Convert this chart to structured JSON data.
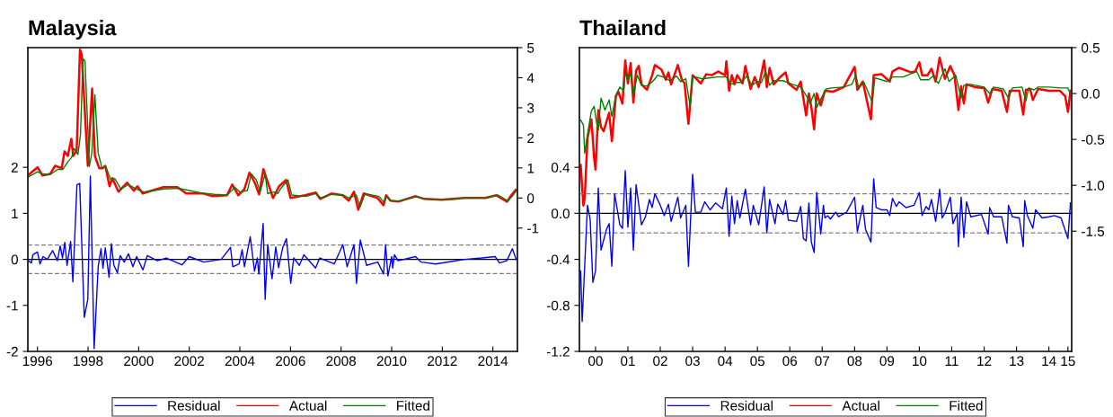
{
  "chart_data": [
    {
      "type": "line",
      "title": "Malaysia",
      "legend": "bottom",
      "grid": false,
      "marker": "none",
      "line_style": "solid",
      "xlim": [
        1995.62,
        2014.97
      ],
      "xticks": [
        1996,
        1998,
        2000,
        2002,
        2004,
        2006,
        2008,
        2010,
        2012,
        2014
      ],
      "ylim": [
        -2,
        4.6
      ],
      "yticks": [
        -2,
        -1,
        0,
        1,
        2
      ],
      "y2lim": [
        -5.1,
        5
      ],
      "y2ticks": [
        -1,
        0,
        1,
        2,
        3,
        4,
        5
      ],
      "ref_lines": [
        {
          "axis": "y",
          "value": 0,
          "color": "#000000",
          "line_style": "solid"
        },
        {
          "axis": "y",
          "value": 0.31,
          "color": "#808080",
          "line_style": "dashed"
        },
        {
          "axis": "y",
          "value": -0.31,
          "color": "#808080",
          "line_style": "dashed"
        }
      ],
      "series": [
        {
          "name": "Residual",
          "color": "#0000ff",
          "x": [
            1995.65,
            1995.76,
            1995.82,
            1996.0,
            1996.1,
            1996.22,
            1996.39,
            1996.6,
            1996.79,
            1996.9,
            1996.99,
            1997.08,
            1997.17,
            1997.31,
            1997.4,
            1997.56,
            1997.67,
            1997.85,
            1997.99,
            1998.09,
            1998.24,
            1998.4,
            1998.51,
            1998.59,
            1998.68,
            1998.83,
            1998.92,
            1999.02,
            1999.16,
            1999.27,
            1999.43,
            1999.6,
            1999.77,
            1999.92,
            2000.17,
            2000.34,
            2000.74,
            2001.09,
            2001.71,
            2002.0,
            2002.57,
            2003.26,
            2003.63,
            2003.72,
            2003.97,
            2004.09,
            2004.18,
            2004.41,
            2004.58,
            2004.69,
            2004.75,
            2004.92,
            2005.0,
            2005.1,
            2005.27,
            2005.42,
            2005.53,
            2005.69,
            2005.84,
            2006.01,
            2006.13,
            2006.35,
            2006.53,
            2006.99,
            2007.16,
            2007.73,
            2008.07,
            2008.24,
            2008.51,
            2008.61,
            2008.76,
            2009.01,
            2009.45,
            2009.68,
            2009.76,
            2009.85,
            2010.0,
            2010.04,
            2010.11,
            2010.25,
            2010.94,
            2011.17,
            2011.74,
            2012.88,
            2013.57,
            2014.09,
            2014.26,
            2014.55,
            2014.77,
            2014.92
          ],
          "values": [
            -0.03,
            -0.08,
            0.1,
            0.16,
            -0.1,
            0.06,
            0,
            0.19,
            -0.03,
            0.29,
            0.03,
            0.37,
            -0.13,
            0.39,
            -0.49,
            1.62,
            1.65,
            -1.26,
            -0.87,
            1.81,
            -1.94,
            -0.16,
            0.23,
            -0.19,
            0.25,
            -0.39,
            0.34,
            -0.13,
            -0.29,
            0.08,
            -0.06,
            0.12,
            -0.16,
            0.06,
            -0.23,
            0.08,
            -0.03,
            0.03,
            -0.12,
            0.06,
            -0.06,
            0,
            0.26,
            -0.16,
            -0.1,
            0.21,
            -0.16,
            0.49,
            -0.26,
            0.03,
            -0.32,
            0.78,
            -0.87,
            0.32,
            -0.42,
            0.27,
            -0.18,
            0.25,
            0.45,
            -0.52,
            0.03,
            -0.13,
            0.1,
            -0.19,
            0.03,
            -0.1,
            0.32,
            -0.16,
            0.32,
            -0.52,
            0.42,
            -0.13,
            -0.06,
            -0.32,
            0.32,
            -0.36,
            0.06,
            -0.19,
            0.1,
            -0.03,
            0.06,
            -0.06,
            -0.1,
            0,
            0.03,
            0.06,
            -0.08,
            -0.03,
            0.23,
            0
          ]
        },
        {
          "name": "Actual",
          "color": "#ff0000",
          "axis": "y2",
          "x": [
            1995.65,
            1996.0,
            1996.2,
            1996.5,
            1996.7,
            1996.96,
            1997.07,
            1997.2,
            1997.34,
            1997.41,
            1997.55,
            1997.68,
            1997.75,
            1997.99,
            1998.16,
            1998.27,
            1998.44,
            1998.58,
            1998.68,
            1998.85,
            1998.96,
            1999.2,
            1999.54,
            1999.81,
            1999.95,
            2000.16,
            2000.5,
            2000.98,
            2001.53,
            2001.88,
            2002.56,
            2002.91,
            2003.49,
            2003.7,
            2003.94,
            2004.18,
            2004.38,
            2004.59,
            2004.76,
            2004.93,
            2005.31,
            2005.55,
            2005.83,
            2006.0,
            2006.58,
            2007.0,
            2007.17,
            2007.62,
            2008.06,
            2008.3,
            2008.51,
            2008.68,
            2008.89,
            2009.44,
            2009.68,
            2009.78,
            2009.95,
            2010.26,
            2010.95,
            2011.29,
            2011.98,
            2012.87,
            2013.7,
            2014.14,
            2014.56,
            2014.73,
            2014.9
          ],
          "values": [
            0.77,
            1.02,
            0.75,
            0.8,
            1.07,
            0.99,
            1.55,
            1.4,
            1.97,
            1.4,
            1.58,
            4.93,
            4.78,
            1.07,
            3.64,
            1.4,
            0.99,
            0.99,
            1.07,
            0.39,
            0.66,
            0.21,
            0.51,
            0.24,
            0.39,
            0.15,
            0.24,
            0.36,
            0.36,
            0.15,
            0.15,
            0.06,
            0.09,
            0.45,
            0.09,
            0.3,
            0.84,
            0.51,
            0.12,
            0.96,
            0,
            0.39,
            0.6,
            0,
            0.09,
            0.18,
            -0.03,
            0.15,
            0.09,
            -0.09,
            0.21,
            -0.39,
            0.15,
            0,
            -0.24,
            0.09,
            -0.09,
            -0.12,
            0.06,
            -0.03,
            -0.06,
            0,
            0,
            0.09,
            -0.12,
            0.09,
            0.27
          ]
        },
        {
          "name": "Fitted",
          "color": "#008000",
          "axis": "y2",
          "x": [
            1995.65,
            1996.0,
            1996.2,
            1996.5,
            1996.8,
            1997.0,
            1997.2,
            1997.35,
            1997.45,
            1997.6,
            1997.7,
            1997.8,
            1997.88,
            1998.05,
            1998.15,
            1998.27,
            1998.4,
            1998.55,
            1998.7,
            1998.9,
            1999.05,
            1999.3,
            1999.6,
            1999.9,
            2000.2,
            2000.6,
            2001.0,
            2001.6,
            2002.0,
            2002.6,
            2003.0,
            2003.5,
            2003.8,
            2004.0,
            2004.3,
            2004.45,
            2004.65,
            2004.8,
            2005.0,
            2005.1,
            2005.35,
            2005.5,
            2005.6,
            2005.9,
            2006.05,
            2006.6,
            2007.0,
            2007.2,
            2007.6,
            2008.1,
            2008.3,
            2008.6,
            2008.75,
            2008.95,
            2009.5,
            2009.7,
            2009.8,
            2010.0,
            2010.3,
            2011.0,
            2011.3,
            2012.0,
            2012.9,
            2013.7,
            2014.2,
            2014.6,
            2014.8,
            2014.95
          ],
          "values": [
            0.7,
            0.87,
            0.8,
            0.78,
            0.95,
            0.95,
            1.2,
            1.35,
            1.65,
            1.45,
            2.1,
            4.63,
            4.55,
            1.05,
            1.5,
            3.43,
            1.5,
            1.0,
            1.05,
            0.6,
            0.65,
            0.3,
            0.45,
            0.3,
            0.2,
            0.25,
            0.3,
            0.32,
            0.25,
            0.15,
            0.12,
            0.1,
            0.35,
            0.2,
            0.25,
            0.8,
            0.6,
            0.2,
            0.8,
            0.15,
            0.2,
            0.15,
            0.3,
            0.6,
            0.1,
            0.05,
            0.15,
            0,
            0.12,
            0.1,
            0,
            0.1,
            -0.3,
            0.15,
            0.05,
            -0.15,
            0.05,
            -0.1,
            -0.1,
            0.05,
            -0.03,
            -0.06,
            0,
            0,
            0.1,
            -0.1,
            0.1,
            0.27
          ]
        }
      ]
    },
    {
      "type": "line",
      "title": "Thailand",
      "legend": "bottom",
      "grid": false,
      "marker": "none",
      "line_style": "solid",
      "xlim": [
        "2000-01-01",
        "2015-03-15"
      ],
      "xticks": [
        {
          "value": "2000-07-01",
          "label": "00"
        },
        {
          "value": "2001-07-01",
          "label": "01"
        },
        {
          "value": "2002-07-01",
          "label": "02"
        },
        {
          "value": "2003-07-01",
          "label": "03"
        },
        {
          "value": "2004-07-01",
          "label": "04"
        },
        {
          "value": "2005-07-01",
          "label": "05"
        },
        {
          "value": "2006-07-01",
          "label": "06"
        },
        {
          "value": "2007-07-01",
          "label": "07"
        },
        {
          "value": "2008-07-01",
          "label": "08"
        },
        {
          "value": "2009-07-01",
          "label": "09"
        },
        {
          "value": "2010-07-01",
          "label": "10"
        },
        {
          "value": "2011-07-01",
          "label": "11"
        },
        {
          "value": "2012-07-01",
          "label": "12"
        },
        {
          "value": "2013-07-01",
          "label": "13"
        },
        {
          "value": "2014-07-01",
          "label": "14"
        },
        {
          "value": "2015-02-01",
          "label": "15"
        }
      ],
      "ylim": [
        -1.2,
        1.44
      ],
      "yticks": [
        -1.2,
        -0.8,
        -0.4,
        {
          "value": 0,
          "label": "0.0"
        },
        0.4
      ],
      "y2lim": [
        -2.81,
        0.5
      ],
      "y2ticks": [
        {
          "value": -1.5,
          "label": "-1.5"
        },
        {
          "value": -1,
          "label": "-1.0"
        },
        {
          "value": -0.5,
          "label": "-0.5"
        },
        {
          "value": 0,
          "label": "0.0"
        },
        {
          "value": 0.5,
          "label": "0.5"
        }
      ],
      "ref_lines": [
        {
          "axis": "y",
          "value": 0,
          "color": "#000000",
          "line_style": "solid"
        },
        {
          "axis": "y",
          "value": 0.17,
          "color": "#808080",
          "line_style": "dashed"
        },
        {
          "axis": "y",
          "value": -0.17,
          "color": "#808080",
          "line_style": "dashed"
        }
      ],
      "series": [
        {
          "name": "Residual",
          "color": "#0000ff",
          "x": [
            "2000-01-15",
            "2000-02-01",
            "2000-04-01",
            "2000-05-01",
            "2000-06-01",
            "2000-07-01",
            "2000-08-01",
            "2000-09-01",
            "2000-11-01",
            "2000-12-01",
            "2001-01-01",
            "2001-02-01",
            "2001-04-01",
            "2001-05-01",
            "2001-06-01",
            "2001-07-01",
            "2001-08-01",
            "2001-09-01",
            "2001-10-01",
            "2001-12-01",
            "2002-01-15",
            "2002-03-01",
            "2002-04-01",
            "2002-05-01",
            "2002-07-01",
            "2002-08-15",
            "2002-10-01",
            "2002-11-01",
            "2003-01-15",
            "2003-02-15",
            "2003-04-15",
            "2003-05-15",
            "2003-07-01",
            "2003-08-01",
            "2003-10-01",
            "2003-11-15",
            "2004-01-15",
            "2004-03-15",
            "2004-06-01",
            "2004-07-15",
            "2004-08-15",
            "2004-09-15",
            "2004-10-15",
            "2004-11-15",
            "2004-12-15",
            "2005-02-15",
            "2005-04-15",
            "2005-05-15",
            "2005-07-15",
            "2005-09-15",
            "2005-10-15",
            "2005-11-15",
            "2006-01-15",
            "2006-02-15",
            "2006-04-15",
            "2006-05-15",
            "2006-06-15",
            "2006-09-15",
            "2006-11-01",
            "2006-12-01",
            "2007-01-01",
            "2007-02-01",
            "2007-03-01",
            "2007-04-01",
            "2007-05-01",
            "2007-06-15",
            "2007-07-15",
            "2007-08-01",
            "2007-09-01",
            "2007-10-01",
            "2007-12-01",
            "2008-01-01",
            "2008-04-01",
            "2008-07-01",
            "2008-08-01",
            "2008-10-01",
            "2008-11-01",
            "2009-01-01",
            "2009-02-01",
            "2009-03-01",
            "2009-05-01",
            "2009-07-01",
            "2009-08-01",
            "2009-09-01",
            "2009-10-15",
            "2009-11-15",
            "2010-02-01",
            "2010-05-01",
            "2010-07-01",
            "2010-08-01",
            "2010-09-15",
            "2010-10-15",
            "2010-11-15",
            "2011-01-01",
            "2011-02-15",
            "2011-03-15",
            "2011-04-15",
            "2011-06-15",
            "2011-07-15",
            "2011-09-01",
            "2011-09-15",
            "2011-10-15",
            "2011-11-15",
            "2011-12-15",
            "2012-02-01",
            "2012-06-01",
            "2012-08-15",
            "2012-09-01",
            "2012-10-15",
            "2013-01-15",
            "2013-03-15",
            "2013-04-01",
            "2013-05-15",
            "2013-08-01",
            "2013-09-15",
            "2013-10-01",
            "2013-11-01",
            "2014-01-01",
            "2014-02-01",
            "2014-04-15",
            "2014-07-01",
            "2014-09-01",
            "2014-11-15",
            "2015-02-01",
            "2015-03-01"
          ],
          "values": [
            -0.5,
            -0.94,
            0.07,
            -0.05,
            -0.6,
            -0.5,
            0.22,
            -0.32,
            -0.14,
            -0.09,
            -0.46,
            0.17,
            -0.1,
            -0.13,
            0.37,
            -0.12,
            0.22,
            -0.32,
            0.25,
            -0.1,
            -0.03,
            0.12,
            0.05,
            0.17,
            0.07,
            -0.02,
            0.08,
            -0.07,
            0.14,
            -0.04,
            0.07,
            -0.46,
            0.34,
            0.01,
            0.01,
            0.1,
            0.03,
            0.09,
            0.04,
            0.22,
            -0.2,
            0.15,
            -0.09,
            0.11,
            -0.04,
            0.21,
            -0.1,
            0.07,
            -0.1,
            0.23,
            -0.17,
            0.12,
            -0.09,
            0.08,
            -0.01,
            0.11,
            -0.06,
            -0.07,
            0.06,
            -0.22,
            -0.24,
            0.09,
            -0.25,
            -0.34,
            0.18,
            -0.18,
            0.07,
            -0.04,
            -0.02,
            -0.05,
            0.01,
            -0.03,
            0.01,
            0.14,
            -0.16,
            0.07,
            -0.14,
            -0.25,
            0.3,
            0.05,
            0.03,
            0.03,
            -0.02,
            0.13,
            0.06,
            0.1,
            0.05,
            0.07,
            0.18,
            -0.02,
            0.06,
            0.03,
            0.12,
            -0.07,
            0.21,
            -0.04,
            0,
            0.14,
            -0.09,
            0,
            -0.29,
            0.14,
            -0.21,
            0.1,
            -0.03,
            -0.01,
            -0.18,
            0.05,
            -0.03,
            -0.03,
            -0.26,
            0.07,
            -0.03,
            -0.04,
            -0.29,
            0.11,
            -0.02,
            -0.13,
            0.03,
            -0.04,
            -0.03,
            -0.02,
            -0.04,
            -0.22,
            0.09
          ]
        },
        {
          "name": "Actual",
          "color": "#ff0000",
          "axis": "y2",
          "x": [
            "2000-01-15",
            "2000-02-15",
            "2000-03-01",
            "2000-04-01",
            "2000-05-15",
            "2000-06-15",
            "2000-07-01",
            "2000-08-01",
            "2000-09-01",
            "2000-10-01",
            "2000-12-01",
            "2001-01-01",
            "2001-02-15",
            "2001-03-15",
            "2001-05-01",
            "2001-06-01",
            "2001-07-01",
            "2001-08-01",
            "2001-09-01",
            "2001-10-01",
            "2001-11-01",
            "2001-12-01",
            "2002-02-01",
            "2002-04-01",
            "2002-05-01",
            "2002-07-15",
            "2002-09-01",
            "2002-10-01",
            "2002-11-01",
            "2003-01-15",
            "2003-03-01",
            "2003-04-01",
            "2003-05-15",
            "2003-07-01",
            "2003-10-01",
            "2003-12-01",
            "2004-02-01",
            "2004-04-15",
            "2004-07-01",
            "2004-07-15",
            "2004-08-15",
            "2004-09-15",
            "2004-10-15",
            "2004-11-15",
            "2005-01-15",
            "2005-02-15",
            "2005-04-15",
            "2005-06-01",
            "2005-07-15",
            "2005-09-15",
            "2005-10-15",
            "2005-11-15",
            "2006-01-01",
            "2006-03-15",
            "2006-05-15",
            "2006-06-15",
            "2006-09-15",
            "2006-11-01",
            "2007-01-01",
            "2007-02-01",
            "2007-03-01",
            "2007-04-01",
            "2007-05-01",
            "2007-06-15",
            "2007-08-01",
            "2007-11-01",
            "2008-03-01",
            "2008-07-01",
            "2008-08-01",
            "2008-10-01",
            "2009-01-01",
            "2009-02-01",
            "2009-05-01",
            "2009-08-01",
            "2009-09-01",
            "2009-11-15",
            "2010-04-01",
            "2010-05-15",
            "2010-07-01",
            "2010-08-01",
            "2010-10-01",
            "2010-11-15",
            "2011-01-01",
            "2011-02-15",
            "2011-04-15",
            "2011-06-15",
            "2011-08-01",
            "2011-09-15",
            "2011-10-15",
            "2011-11-15",
            "2011-12-15",
            "2012-03-15",
            "2012-07-01",
            "2012-08-15",
            "2012-10-01",
            "2013-01-15",
            "2013-03-15",
            "2013-04-15",
            "2013-08-01",
            "2013-09-15",
            "2013-10-15",
            "2013-12-01",
            "2014-01-01",
            "2014-03-01",
            "2014-07-01",
            "2014-11-01",
            "2015-01-01",
            "2015-02-01",
            "2015-03-01"
          ],
          "values": [
            -0.78,
            -1.22,
            -1.14,
            -0.49,
            -0.28,
            -0.7,
            -0.83,
            -0.18,
            -0.37,
            -0.41,
            -0.21,
            -0.52,
            -0.03,
            0.02,
            -0.11,
            0.36,
            0.11,
            0.33,
            -0.1,
            0.25,
            0.3,
            0.1,
            0.04,
            0.2,
            0.31,
            0.26,
            0.15,
            0.23,
            0.1,
            0.31,
            0.15,
            0.11,
            -0.33,
            0.2,
            0.11,
            0.21,
            0.2,
            0.24,
            0.2,
            0.35,
            0.03,
            0.2,
            0.1,
            0.2,
            0.11,
            0.3,
            0.05,
            0.18,
            0.07,
            0.36,
            0.07,
            0.28,
            0.1,
            0.18,
            0.23,
            0.11,
            0.04,
            0.13,
            -0.24,
            0,
            -0.15,
            -0.39,
            0,
            -0.13,
            0.03,
            0.02,
            0.07,
            0.29,
            0.04,
            0.13,
            -0.28,
            0.2,
            0.21,
            0.13,
            0.24,
            0.28,
            0.23,
            0.24,
            0.34,
            0.2,
            0.2,
            0.27,
            0.13,
            0.39,
            0.16,
            0.3,
            0.2,
            -0.18,
            0.08,
            -0.11,
            0.1,
            0.07,
            0.06,
            -0.1,
            0.05,
            0.03,
            -0.2,
            0.03,
            0.03,
            -0.23,
            0.04,
            0.05,
            -0.07,
            0.05,
            0.03,
            0.03,
            -0.03,
            -0.2,
            0.03
          ]
        },
        {
          "name": "Fitted",
          "color": "#008000",
          "axis": "y2",
          "x": [
            "2000-01-15",
            "2000-02-15",
            "2000-03-01",
            "2000-04-01",
            "2000-05-15",
            "2000-06-15",
            "2000-07-15",
            "2000-08-01",
            "2000-09-01",
            "2000-10-15",
            "2000-12-01",
            "2001-01-01",
            "2001-02-15",
            "2001-04-01",
            "2001-05-15",
            "2001-06-01",
            "2001-07-01",
            "2001-08-01",
            "2001-09-01",
            "2001-10-15",
            "2001-12-01",
            "2002-02-01",
            "2002-04-15",
            "2002-06-01",
            "2002-08-01",
            "2002-10-15",
            "2003-01-01",
            "2003-02-15",
            "2003-04-15",
            "2003-06-01",
            "2003-07-01",
            "2003-10-15",
            "2004-01-01",
            "2004-04-15",
            "2004-07-15",
            "2004-09-01",
            "2004-11-01",
            "2005-01-01",
            "2005-03-01",
            "2005-05-01",
            "2005-07-01",
            "2005-08-15",
            "2005-10-01",
            "2005-11-15",
            "2006-01-01",
            "2006-04-15",
            "2006-08-01",
            "2006-11-01",
            "2007-01-15",
            "2007-02-15",
            "2007-04-01",
            "2007-05-01",
            "2007-07-01",
            "2007-08-15",
            "2007-10-15",
            "2008-03-01",
            "2008-06-01",
            "2008-07-15",
            "2008-08-15",
            "2008-10-15",
            "2009-01-15",
            "2009-02-15",
            "2009-07-01",
            "2009-09-01",
            "2010-01-01",
            "2010-06-01",
            "2010-07-15",
            "2010-10-15",
            "2010-12-01",
            "2011-02-01",
            "2011-04-15",
            "2011-06-01",
            "2011-08-15",
            "2011-10-15",
            "2011-11-15",
            "2012-02-01",
            "2012-07-01",
            "2012-09-01",
            "2012-10-15",
            "2013-02-01",
            "2013-04-01",
            "2013-05-15",
            "2013-09-01",
            "2013-10-15",
            "2013-11-15",
            "2014-01-15",
            "2014-03-01",
            "2014-07-01",
            "2014-11-15",
            "2015-02-01",
            "2015-03-01"
          ],
          "values": [
            -0.29,
            -0.34,
            -0.65,
            -0.45,
            -0.19,
            -0.14,
            -0.33,
            -0.4,
            -0.05,
            -0.18,
            -0.07,
            -0.25,
            -0.02,
            0.07,
            0.03,
            0.23,
            0.15,
            0.22,
            -0.01,
            0.2,
            0.09,
            0.08,
            0.14,
            0.2,
            0.18,
            0.14,
            0.19,
            0.13,
            0.16,
            -0.13,
            0.19,
            0.16,
            0.17,
            0.18,
            0.18,
            0.1,
            0.12,
            0.12,
            0.19,
            0.09,
            0.13,
            0.12,
            0.24,
            0.09,
            0.14,
            0.14,
            0.1,
            0.07,
            -0.04,
            -0.11,
            0,
            -0.15,
            -0.03,
            0.05,
            0.06,
            0.07,
            0.1,
            0.2,
            0.06,
            0.12,
            -0.09,
            0.17,
            0.13,
            0.18,
            0.18,
            0.24,
            0.15,
            0.15,
            0.19,
            0.11,
            0.27,
            0.13,
            0.2,
            -0.05,
            0.09,
            0.1,
            0.07,
            0,
            0.07,
            0.05,
            -0.05,
            0.06,
            0.07,
            -0.08,
            0.06,
            0.04,
            0.07,
            0.07,
            0.06,
            0.06,
            -0.01
          ]
        }
      ]
    }
  ]
}
